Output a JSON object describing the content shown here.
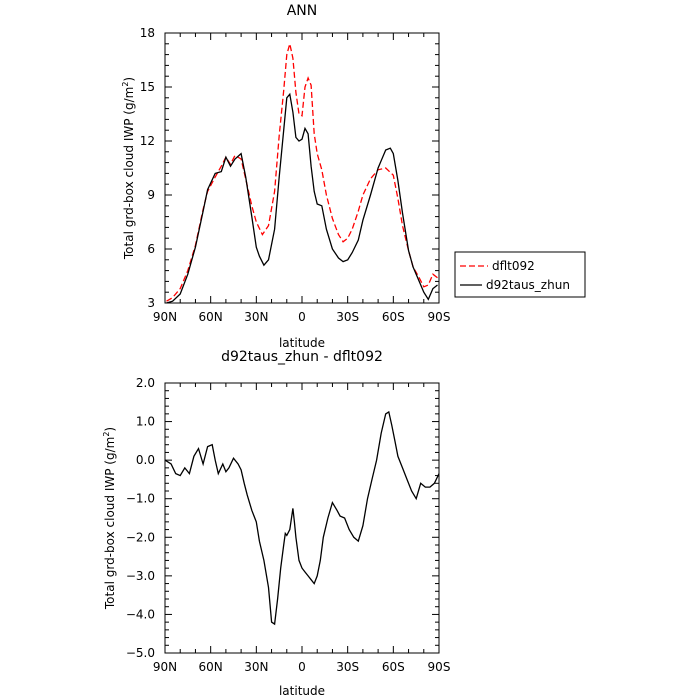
{
  "chart_data": [
    {
      "type": "line",
      "title": "ANN",
      "xlabel": "latitude",
      "ylabel": "Total grd-box cloud IWP (g/m",
      "ylabel_sup": "2",
      "ylabel_end": ")",
      "xlim": [
        90,
        -90
      ],
      "ylim": [
        3,
        18
      ],
      "x_ticks": [
        90,
        60,
        30,
        0,
        -30,
        -60,
        -90
      ],
      "x_tick_labels": [
        "90N",
        "60N",
        "30N",
        "0",
        "30S",
        "60S",
        "90S"
      ],
      "y_ticks": [
        3,
        6,
        9,
        12,
        15,
        18
      ],
      "y_tick_labels": [
        "3",
        "6",
        "9",
        "12",
        "15",
        "18"
      ],
      "legend": {
        "placement": "right",
        "entries": [
          "dflt092",
          "d92taus_zhun"
        ]
      },
      "series": [
        {
          "name": "dflt092",
          "color": "#ff0000",
          "dash": "dashed",
          "x": [
            89,
            85,
            80,
            75,
            70,
            65,
            62,
            57,
            53,
            50,
            47,
            44,
            40,
            37,
            33,
            30,
            26,
            22,
            18,
            15,
            12,
            10,
            8,
            6,
            4,
            2,
            0,
            -2,
            -4,
            -6,
            -8,
            -10,
            -13,
            -16,
            -20,
            -24,
            -27,
            -30,
            -33,
            -37,
            -40,
            -45,
            -50,
            -55,
            -60,
            -63,
            -66,
            -70,
            -73,
            -77,
            -80,
            -83,
            -86,
            -89
          ],
          "y": [
            3.1,
            3.3,
            3.8,
            4.8,
            6.2,
            8.2,
            9.2,
            10.0,
            10.6,
            11.1,
            10.7,
            11.2,
            11.0,
            9.9,
            8.4,
            7.5,
            6.8,
            7.3,
            9.2,
            12.3,
            14.8,
            16.8,
            17.4,
            16.6,
            14.7,
            13.5,
            13.4,
            15.0,
            15.5,
            15.1,
            12.4,
            11.3,
            10.4,
            9.0,
            7.7,
            6.8,
            6.4,
            6.6,
            7.1,
            8.1,
            9.0,
            9.9,
            10.4,
            10.5,
            10.1,
            8.8,
            7.3,
            5.9,
            5.0,
            4.4,
            3.9,
            4.0,
            4.6,
            4.4
          ]
        },
        {
          "name": "d92taus_zhun",
          "color": "#000000",
          "dash": "solid",
          "x": [
            89,
            85,
            80,
            75,
            70,
            65,
            62,
            57,
            53,
            50,
            47,
            44,
            40,
            37,
            33,
            30,
            28,
            25,
            22,
            18,
            15,
            12,
            10,
            8,
            6,
            4,
            2,
            0,
            -2,
            -4,
            -6,
            -8,
            -10,
            -13,
            -16,
            -20,
            -24,
            -27,
            -30,
            -33,
            -37,
            -40,
            -45,
            -50,
            -55,
            -58,
            -60,
            -63,
            -66,
            -70,
            -73,
            -77,
            -80,
            -83,
            -86,
            -89
          ],
          "y": [
            3.0,
            3.1,
            3.5,
            4.6,
            6.1,
            8.1,
            9.3,
            10.2,
            10.3,
            11.1,
            10.6,
            11.0,
            11.3,
            10.0,
            7.8,
            6.1,
            5.6,
            5.1,
            5.4,
            7.1,
            10.0,
            12.6,
            14.4,
            14.6,
            13.6,
            12.2,
            12.0,
            12.1,
            12.7,
            12.4,
            10.6,
            9.2,
            8.5,
            8.4,
            7.1,
            6.0,
            5.5,
            5.3,
            5.4,
            5.8,
            6.5,
            7.6,
            9.0,
            10.5,
            11.5,
            11.6,
            11.3,
            9.8,
            8.0,
            5.9,
            5.0,
            4.2,
            3.6,
            3.2,
            3.8,
            4.0
          ]
        }
      ]
    },
    {
      "type": "line",
      "title": "d92taus_zhun - dflt092",
      "xlabel": "latitude",
      "ylabel": "Total grd-box cloud IWP (g/m",
      "ylabel_sup": "2",
      "ylabel_end": ")",
      "xlim": [
        90,
        -90
      ],
      "ylim": [
        -5,
        2
      ],
      "x_ticks": [
        90,
        60,
        30,
        0,
        -30,
        -60,
        -90
      ],
      "x_tick_labels": [
        "90N",
        "60N",
        "30N",
        "0",
        "30S",
        "60S",
        "90S"
      ],
      "y_ticks": [
        2,
        1,
        0,
        -1,
        -2,
        -3,
        -4,
        -5
      ],
      "y_tick_labels": [
        "2.0",
        "1.0",
        "0.0",
        "−1.0",
        "−2.0",
        "−3.0",
        "−4.0",
        "−5.0"
      ],
      "series": [
        {
          "color": "#000000",
          "dash": "solid",
          "x": [
            90,
            86,
            83,
            80,
            77,
            74,
            71,
            68,
            65,
            62,
            59,
            57,
            55,
            52,
            50,
            48,
            45,
            42,
            40,
            38,
            36,
            33,
            30,
            28,
            25,
            22,
            20,
            18,
            16,
            14,
            12,
            11,
            10,
            8,
            6,
            5,
            4,
            2,
            0,
            -2,
            -4,
            -6,
            -8,
            -10,
            -12,
            -14,
            -17,
            -20,
            -23,
            -25,
            -28,
            -31,
            -34,
            -37,
            -40,
            -43,
            -46,
            -49,
            -52,
            -55,
            -57,
            -59,
            -61,
            -63,
            -66,
            -69,
            -72,
            -75,
            -78,
            -81,
            -84,
            -87,
            -90
          ],
          "y": [
            0.0,
            -0.1,
            -0.35,
            -0.4,
            -0.2,
            -0.35,
            0.1,
            0.3,
            -0.1,
            0.35,
            0.4,
            0.0,
            -0.35,
            -0.1,
            -0.3,
            -0.2,
            0.05,
            -0.1,
            -0.25,
            -0.6,
            -0.9,
            -1.3,
            -1.6,
            -2.1,
            -2.6,
            -3.3,
            -4.2,
            -4.25,
            -3.6,
            -2.8,
            -2.2,
            -1.9,
            -1.95,
            -1.8,
            -1.25,
            -1.6,
            -2.0,
            -2.6,
            -2.8,
            -2.9,
            -3.0,
            -3.1,
            -3.2,
            -3.0,
            -2.6,
            -2.0,
            -1.5,
            -1.1,
            -1.3,
            -1.45,
            -1.5,
            -1.8,
            -2.0,
            -2.1,
            -1.7,
            -1.0,
            -0.5,
            0.0,
            0.7,
            1.2,
            1.25,
            0.9,
            0.5,
            0.1,
            -0.2,
            -0.5,
            -0.8,
            -1.0,
            -0.6,
            -0.7,
            -0.7,
            -0.6,
            -0.35
          ]
        }
      ]
    }
  ]
}
